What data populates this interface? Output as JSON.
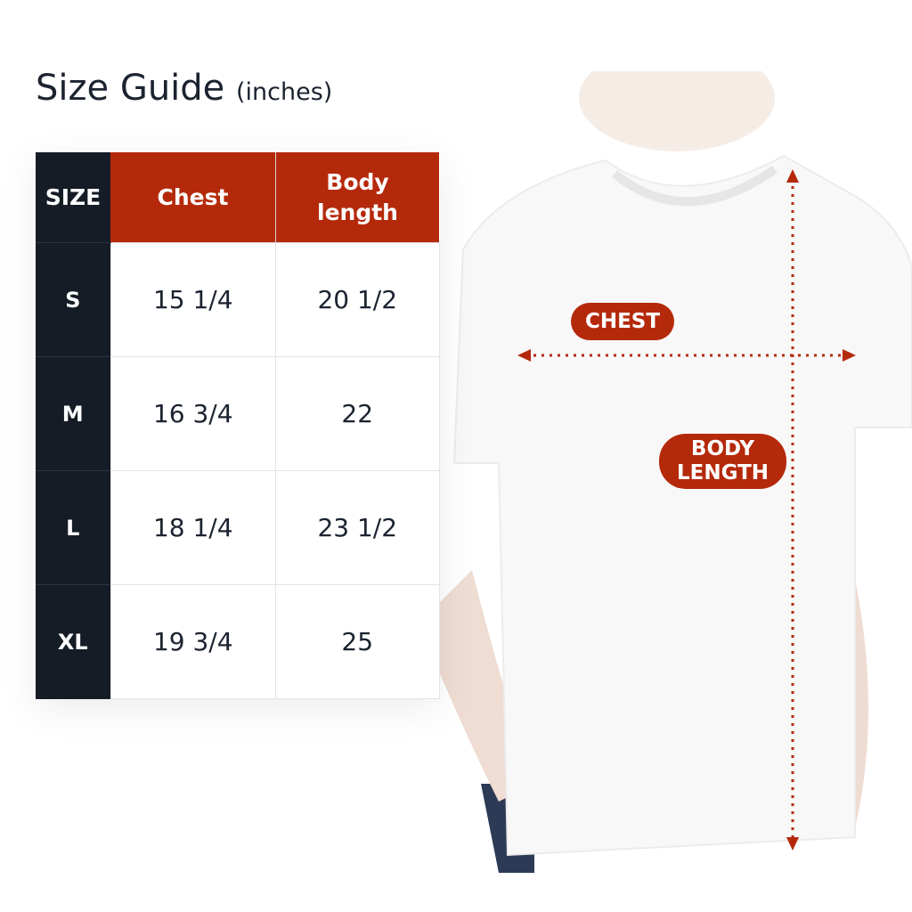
{
  "title": {
    "main": "Size Guide",
    "unit": "(inches)"
  },
  "table": {
    "headers": [
      "SIZE",
      "Chest",
      "Body length"
    ],
    "rows": [
      {
        "size": "S",
        "chest": "15 1/4",
        "body_length": "20 1/2"
      },
      {
        "size": "M",
        "chest": "16 3/4",
        "body_length": "22"
      },
      {
        "size": "L",
        "chest": "18 1/4",
        "body_length": "23 1/2"
      },
      {
        "size": "XL",
        "chest": "19 3/4",
        "body_length": "25"
      }
    ]
  },
  "diagram": {
    "chest_label": "CHEST",
    "body_length_label_line1": "BODY",
    "body_length_label_line2": "LENGTH"
  },
  "colors": {
    "accent": "#b5290b",
    "dark": "#151c26",
    "text": "#1b2330"
  }
}
